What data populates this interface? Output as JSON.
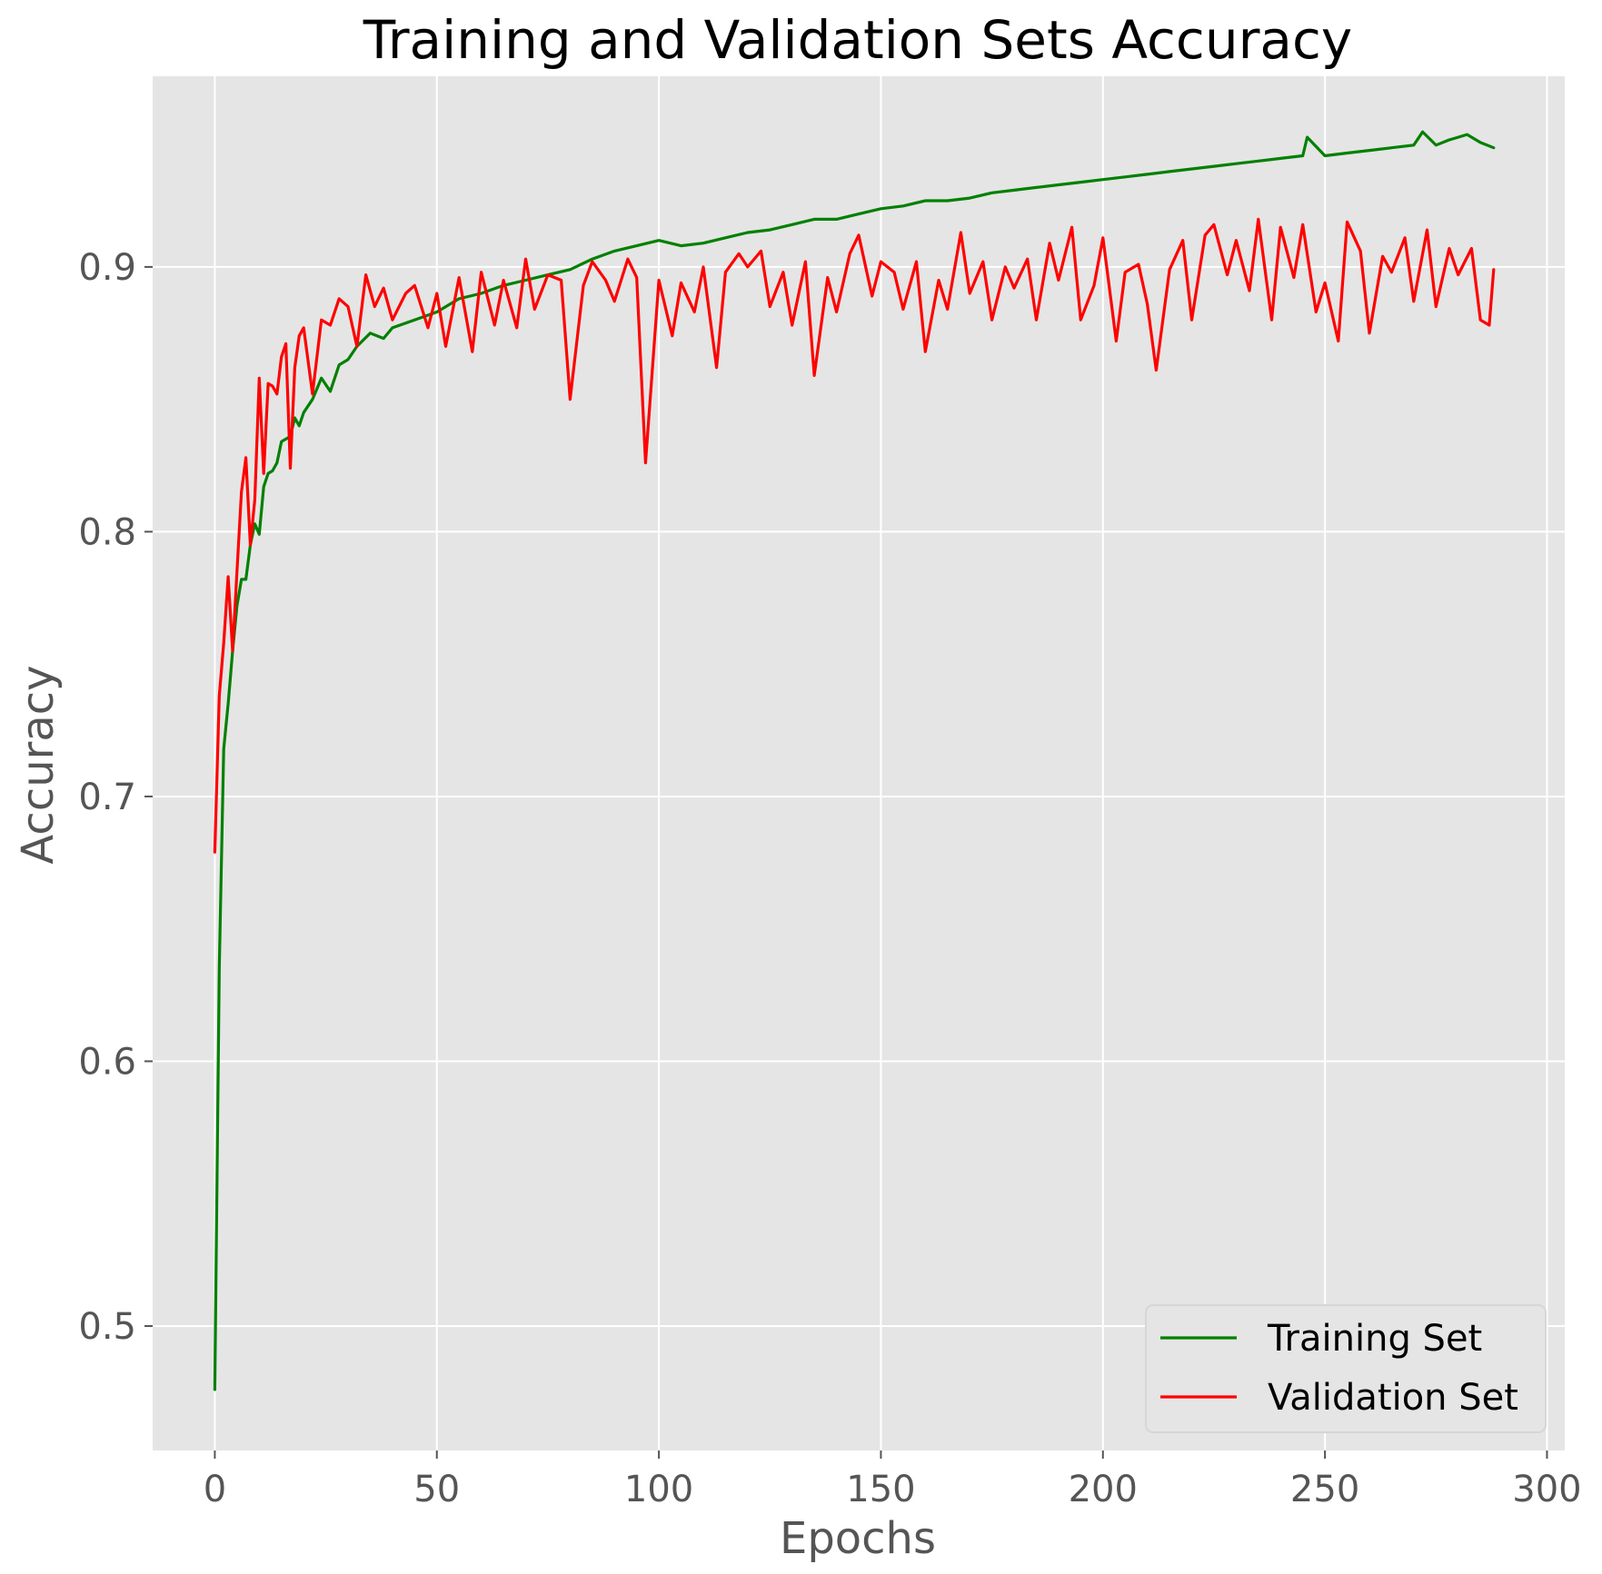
{
  "chart_data": {
    "type": "line",
    "title": "Training and Validation Sets Accuracy",
    "xlabel": "Epochs",
    "ylabel": "Accuracy",
    "xlim": [
      -14,
      304
    ],
    "ylim": [
      0.453,
      0.972
    ],
    "xticks": [
      0,
      50,
      100,
      150,
      200,
      250,
      300
    ],
    "yticks": [
      0.5,
      0.6,
      0.7,
      0.8,
      0.9
    ],
    "ytick_labels": [
      "0.5",
      "0.6",
      "0.7",
      "0.8",
      "0.9"
    ],
    "grid": true,
    "legend_position": "lower-right",
    "background": "#e5e5e5",
    "series": [
      {
        "name": "Training Set",
        "color": "#008000",
        "x": [
          0,
          1,
          2,
          3,
          4,
          5,
          6,
          7,
          8,
          9,
          10,
          11,
          12,
          13,
          14,
          15,
          16,
          17,
          18,
          19,
          20,
          22,
          24,
          26,
          28,
          30,
          32,
          35,
          38,
          40,
          45,
          50,
          55,
          60,
          65,
          70,
          75,
          80,
          85,
          90,
          95,
          100,
          105,
          110,
          115,
          120,
          125,
          130,
          135,
          140,
          145,
          150,
          155,
          160,
          165,
          170,
          175,
          180,
          185,
          190,
          195,
          200,
          205,
          210,
          215,
          220,
          225,
          230,
          235,
          240,
          245,
          246,
          250,
          255,
          260,
          265,
          270,
          272,
          275,
          278,
          280,
          282,
          285,
          288
        ],
        "values": [
          0.476,
          0.635,
          0.718,
          0.735,
          0.755,
          0.772,
          0.782,
          0.782,
          0.795,
          0.803,
          0.799,
          0.817,
          0.822,
          0.823,
          0.826,
          0.834,
          0.835,
          0.836,
          0.843,
          0.84,
          0.845,
          0.85,
          0.858,
          0.853,
          0.863,
          0.865,
          0.87,
          0.875,
          0.873,
          0.877,
          0.88,
          0.883,
          0.888,
          0.89,
          0.893,
          0.895,
          0.897,
          0.899,
          0.903,
          0.906,
          0.908,
          0.91,
          0.908,
          0.909,
          0.911,
          0.913,
          0.914,
          0.916,
          0.918,
          0.918,
          0.92,
          0.922,
          0.923,
          0.925,
          0.925,
          0.926,
          0.928,
          0.929,
          0.93,
          0.931,
          0.932,
          0.933,
          0.934,
          0.935,
          0.936,
          0.937,
          0.938,
          0.939,
          0.94,
          0.941,
          0.942,
          0.949,
          0.942,
          0.943,
          0.944,
          0.945,
          0.946,
          0.951,
          0.946,
          0.948,
          0.949,
          0.95,
          0.947,
          0.945
        ]
      },
      {
        "name": "Validation Set",
        "color": "#ff0000",
        "x": [
          0,
          1,
          2,
          3,
          4,
          5,
          6,
          7,
          8,
          9,
          10,
          11,
          12,
          13,
          14,
          15,
          16,
          17,
          18,
          19,
          20,
          22,
          24,
          26,
          28,
          30,
          32,
          34,
          36,
          38,
          40,
          43,
          45,
          48,
          50,
          52,
          55,
          58,
          60,
          63,
          65,
          68,
          70,
          72,
          75,
          78,
          80,
          83,
          85,
          88,
          90,
          93,
          95,
          97,
          100,
          103,
          105,
          108,
          110,
          113,
          115,
          118,
          120,
          123,
          125,
          128,
          130,
          133,
          135,
          138,
          140,
          143,
          145,
          148,
          150,
          153,
          155,
          158,
          160,
          163,
          165,
          168,
          170,
          173,
          175,
          178,
          180,
          183,
          185,
          188,
          190,
          193,
          195,
          198,
          200,
          203,
          205,
          208,
          210,
          212,
          215,
          218,
          220,
          223,
          225,
          228,
          230,
          233,
          235,
          238,
          240,
          243,
          245,
          248,
          250,
          253,
          255,
          258,
          260,
          263,
          265,
          268,
          270,
          273,
          275,
          278,
          280,
          283,
          285,
          287,
          288
        ],
        "values": [
          0.679,
          0.738,
          0.758,
          0.783,
          0.755,
          0.785,
          0.815,
          0.828,
          0.795,
          0.812,
          0.858,
          0.822,
          0.856,
          0.855,
          0.852,
          0.866,
          0.871,
          0.824,
          0.862,
          0.874,
          0.877,
          0.852,
          0.88,
          0.878,
          0.888,
          0.885,
          0.87,
          0.897,
          0.885,
          0.892,
          0.88,
          0.89,
          0.893,
          0.877,
          0.89,
          0.87,
          0.896,
          0.868,
          0.898,
          0.878,
          0.895,
          0.877,
          0.903,
          0.884,
          0.897,
          0.895,
          0.85,
          0.893,
          0.902,
          0.895,
          0.887,
          0.903,
          0.896,
          0.826,
          0.895,
          0.874,
          0.894,
          0.883,
          0.9,
          0.862,
          0.898,
          0.905,
          0.9,
          0.906,
          0.885,
          0.898,
          0.878,
          0.902,
          0.859,
          0.896,
          0.883,
          0.905,
          0.912,
          0.889,
          0.902,
          0.898,
          0.884,
          0.902,
          0.868,
          0.895,
          0.884,
          0.913,
          0.89,
          0.902,
          0.88,
          0.9,
          0.892,
          0.903,
          0.88,
          0.909,
          0.895,
          0.915,
          0.88,
          0.893,
          0.911,
          0.872,
          0.898,
          0.901,
          0.886,
          0.861,
          0.899,
          0.91,
          0.88,
          0.912,
          0.916,
          0.897,
          0.91,
          0.891,
          0.918,
          0.88,
          0.915,
          0.896,
          0.916,
          0.883,
          0.894,
          0.872,
          0.917,
          0.906,
          0.875,
          0.904,
          0.898,
          0.911,
          0.887,
          0.914,
          0.885,
          0.907,
          0.897,
          0.907,
          0.88,
          0.878,
          0.899
        ]
      }
    ]
  }
}
